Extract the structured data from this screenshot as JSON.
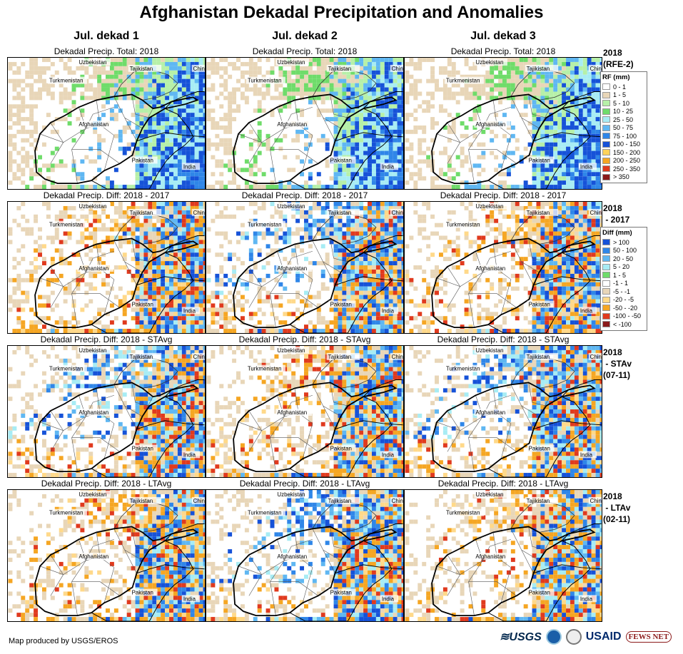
{
  "title": "Afghanistan Dekadal Precipitation and Anomalies",
  "columns": [
    "Jul. dekad 1",
    "Jul. dekad 2",
    "Jul. dekad 3"
  ],
  "rows": [
    {
      "id": "rfe",
      "subtitle": "Dekadal Precip. Total: 2018",
      "label": "2018\n(RFE-2)"
    },
    {
      "id": "d17",
      "subtitle": "Dekadal Precip. Diff: 2018 - 2017",
      "label": "2018\n - 2017"
    },
    {
      "id": "stavg",
      "subtitle": "Dekadal Precip. Diff: 2018 - STAvg",
      "label": "2018\n - STAv\n(07-11)"
    },
    {
      "id": "ltavg",
      "subtitle": "Dekadal Precip. Diff: 2018 - LTAvg",
      "label": "2018\n - LTAv\n(02-11)"
    }
  ],
  "map_labels": {
    "uzbekistan": "Uzbekistan",
    "tajikistan": "Tajikistan",
    "china": "China",
    "turkmenistan": "Turkmenistan",
    "afghanistan": "Afghanistan",
    "pakistan": "Pakistan",
    "india": "India"
  },
  "legend_rf": {
    "title": "RF (mm)",
    "items": [
      {
        "label": "0 - 1",
        "color": "#ffffff"
      },
      {
        "label": "1 - 5",
        "color": "#e8d6b8"
      },
      {
        "label": "5 - 10",
        "color": "#b6f0a8"
      },
      {
        "label": "10 - 25",
        "color": "#6fdc6a"
      },
      {
        "label": "25 - 50",
        "color": "#a7ecf4"
      },
      {
        "label": "50 - 75",
        "color": "#5fb7f2"
      },
      {
        "label": "75 - 100",
        "color": "#2f86e8"
      },
      {
        "label": "100 - 150",
        "color": "#1652d8"
      },
      {
        "label": "150 - 200",
        "color": "#ffd25a"
      },
      {
        "label": "200 - 250",
        "color": "#f5a623"
      },
      {
        "label": "250 - 350",
        "color": "#e03a1e"
      },
      {
        "label": "> 350",
        "color": "#8b1a1a"
      }
    ]
  },
  "legend_diff": {
    "title": "Diff (mm)",
    "items": [
      {
        "label": "> 100",
        "color": "#1652d8"
      },
      {
        "label": "50 - 100",
        "color": "#2f86e8"
      },
      {
        "label": "20 - 50",
        "color": "#5fb7f2"
      },
      {
        "label": "5 - 20",
        "color": "#a7ecf4"
      },
      {
        "label": "1 - 5",
        "color": "#6fdc6a"
      },
      {
        "label": "-1 - 1",
        "color": "#ffffff"
      },
      {
        "label": "-5 - -1",
        "color": "#e8d6b8"
      },
      {
        "label": "-20 - -5",
        "color": "#ffd98a"
      },
      {
        "label": "-50 - -20",
        "color": "#f5a623"
      },
      {
        "label": "-100 - -50",
        "color": "#e03a1e"
      },
      {
        "label": "< -100",
        "color": "#8b1a1a"
      }
    ]
  },
  "credit": "Map produced by USGS/EROS",
  "logos": {
    "usgs": "≋USGS",
    "usaid": "USAID",
    "fews": "FEWS NET"
  }
}
